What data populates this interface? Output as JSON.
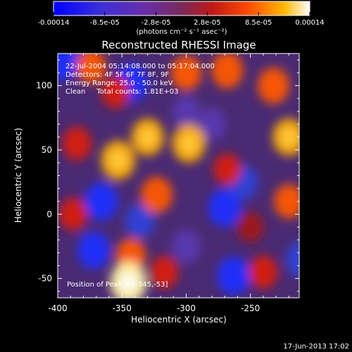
{
  "colorbar": {
    "tick_labels": [
      "-0.00014",
      "-8.5e-05",
      "-2.8e-05",
      "2.8e-05",
      "8.5e-05",
      "0.00014"
    ],
    "units_label": "(photons cm⁻² s⁻¹ asec⁻²)",
    "colors": [
      "#0000ff",
      "#3333cc",
      "#6a2fa8",
      "#8a2a6a",
      "#d01010",
      "#ff5a00",
      "#ffb000",
      "#ffffff"
    ]
  },
  "image": {
    "title": "Reconstructed RHESSI Image",
    "annotations": [
      "22-Jul-2004 05:14:08.000 to 05:17:04.000",
      "Detectors: 4F 5F 6F 7F 8F, 9F",
      "Energy Range: 25.0 - 50.0 keV",
      "Clean     Total counts: 1.81E+03"
    ],
    "position_label": "Position of Peak = [-345,-53]",
    "x_axis_label": "Heliocentric X (arcsec)",
    "y_axis_label": "Heliocentric Y (arcsec)",
    "x_ticks": [
      "-400",
      "-350",
      "-300",
      "-250"
    ],
    "y_ticks": [
      "-50",
      "0",
      "50",
      "100"
    ],
    "timestamp": "17-Jun-2013 17:02"
  },
  "chart_data": {
    "type": "heatmap",
    "title": "Reconstructed RHESSI Image",
    "xlabel": "Heliocentric X (arcsec)",
    "ylabel": "Heliocentric Y (arcsec)",
    "xlim": [
      -400,
      -212
    ],
    "ylim": [
      -65,
      125
    ],
    "x_ticks": [
      -400,
      -350,
      -300,
      -250
    ],
    "y_ticks": [
      -50,
      0,
      50,
      100
    ],
    "colorbar_range": [
      -0.00014,
      0.00014
    ],
    "peak_position": [
      -345,
      -53
    ],
    "blobs": [
      {
        "x": -345,
        "y": -53,
        "level": 1.0
      },
      {
        "x": -353,
        "y": 42,
        "level": 0.85
      },
      {
        "x": -330,
        "y": 60,
        "level": 0.75
      },
      {
        "x": -298,
        "y": 55,
        "level": 0.8
      },
      {
        "x": -300,
        "y": 110,
        "level": 0.65
      },
      {
        "x": -268,
        "y": 112,
        "level": 0.7
      },
      {
        "x": -232,
        "y": 100,
        "level": 0.7
      },
      {
        "x": -220,
        "y": 60,
        "level": 0.75
      },
      {
        "x": -220,
        "y": 10,
        "level": 0.6
      },
      {
        "x": -240,
        "y": -45,
        "level": 0.55
      },
      {
        "x": -323,
        "y": 15,
        "level": 0.7
      },
      {
        "x": -343,
        "y": -32,
        "level": 0.6
      },
      {
        "x": -317,
        "y": -45,
        "level": 0.5
      },
      {
        "x": -385,
        "y": 55,
        "level": 0.55
      },
      {
        "x": -374,
        "y": 115,
        "level": 0.6
      },
      {
        "x": -388,
        "y": 0,
        "level": 0.5
      },
      {
        "x": -268,
        "y": 35,
        "level": 0.45
      },
      {
        "x": -355,
        "y": 95,
        "level": 0.5
      },
      {
        "x": -250,
        "y": -10,
        "level": 0.4
      },
      {
        "x": -397,
        "y": 120,
        "level": -0.9
      },
      {
        "x": -343,
        "y": 102,
        "level": -0.8
      },
      {
        "x": -366,
        "y": 10,
        "level": -0.8
      },
      {
        "x": -372,
        "y": -28,
        "level": -0.75
      },
      {
        "x": -336,
        "y": -5,
        "level": -0.6
      },
      {
        "x": -270,
        "y": 5,
        "level": -0.8
      },
      {
        "x": -263,
        "y": -48,
        "level": -0.8
      },
      {
        "x": -256,
        "y": 25,
        "level": -0.65
      },
      {
        "x": -300,
        "y": -25,
        "level": -0.55
      },
      {
        "x": -210,
        "y": -35,
        "level": -0.7
      },
      {
        "x": -280,
        "y": 70,
        "level": -0.5
      },
      {
        "x": -300,
        "y": 80,
        "level": -0.45
      }
    ]
  }
}
